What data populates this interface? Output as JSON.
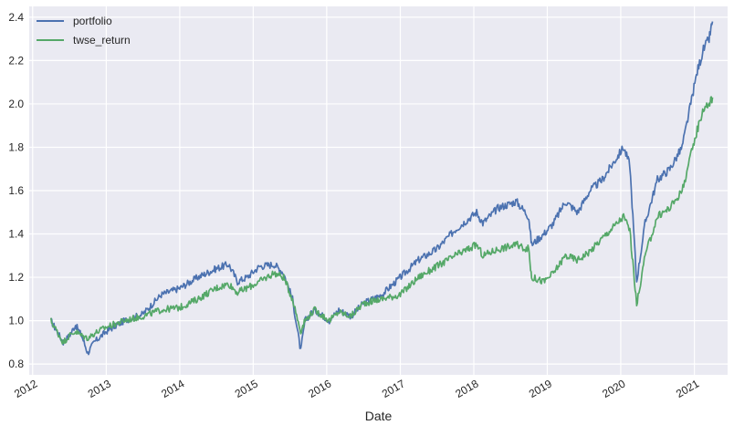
{
  "chart_data": {
    "type": "line",
    "title": "",
    "xlabel": "Date",
    "ylabel": "",
    "xlim": [
      "2011-12-15",
      "2021-06-15"
    ],
    "ylim": [
      0.75,
      2.45
    ],
    "x_ticks": [
      "2012",
      "2013",
      "2014",
      "2015",
      "2016",
      "2017",
      "2018",
      "2019",
      "2020",
      "2021"
    ],
    "y_ticks": [
      0.8,
      1.0,
      1.2,
      1.4,
      1.6,
      1.8,
      2.0,
      2.2,
      2.4
    ],
    "y_tick_labels": [
      "0.8",
      "1.0",
      "1.2",
      "1.4",
      "1.6",
      "1.8",
      "2.0",
      "2.2",
      "2.4"
    ],
    "grid": true,
    "legend_position": "top-left",
    "background_color": "#eaeaf2",
    "series": [
      {
        "name": "portfolio",
        "color": "#4c72b0",
        "points": [
          [
            "2012-04-01",
            1.0
          ],
          [
            "2012-05-01",
            0.95
          ],
          [
            "2012-06-01",
            0.9
          ],
          [
            "2012-07-01",
            0.93
          ],
          [
            "2012-08-01",
            0.98
          ],
          [
            "2012-09-01",
            0.93
          ],
          [
            "2012-10-01",
            0.85
          ],
          [
            "2012-11-01",
            0.9
          ],
          [
            "2013-01-01",
            0.95
          ],
          [
            "2013-04-01",
            1.0
          ],
          [
            "2013-07-01",
            1.03
          ],
          [
            "2013-10-01",
            1.12
          ],
          [
            "2014-01-01",
            1.15
          ],
          [
            "2014-04-01",
            1.2
          ],
          [
            "2014-07-01",
            1.24
          ],
          [
            "2014-09-01",
            1.26
          ],
          [
            "2014-10-15",
            1.18
          ],
          [
            "2014-12-01",
            1.2
          ],
          [
            "2015-02-01",
            1.25
          ],
          [
            "2015-04-15",
            1.26
          ],
          [
            "2015-06-01",
            1.22
          ],
          [
            "2015-07-15",
            1.1
          ],
          [
            "2015-08-25",
            0.86
          ],
          [
            "2015-09-15",
            1.0
          ],
          [
            "2015-11-01",
            1.05
          ],
          [
            "2016-01-15",
            1.0
          ],
          [
            "2016-03-01",
            1.05
          ],
          [
            "2016-05-01",
            1.02
          ],
          [
            "2016-07-01",
            1.08
          ],
          [
            "2016-10-01",
            1.12
          ],
          [
            "2017-01-01",
            1.2
          ],
          [
            "2017-04-01",
            1.28
          ],
          [
            "2017-07-01",
            1.33
          ],
          [
            "2017-10-01",
            1.42
          ],
          [
            "2018-01-15",
            1.5
          ],
          [
            "2018-02-15",
            1.45
          ],
          [
            "2018-05-01",
            1.52
          ],
          [
            "2018-08-01",
            1.55
          ],
          [
            "2018-10-01",
            1.48
          ],
          [
            "2018-10-15",
            1.35
          ],
          [
            "2018-12-15",
            1.4
          ],
          [
            "2019-02-01",
            1.45
          ],
          [
            "2019-04-01",
            1.55
          ],
          [
            "2019-06-01",
            1.5
          ],
          [
            "2019-08-01",
            1.6
          ],
          [
            "2019-10-01",
            1.65
          ],
          [
            "2020-01-15",
            1.8
          ],
          [
            "2020-02-15",
            1.72
          ],
          [
            "2020-03-20",
            1.18
          ],
          [
            "2020-05-01",
            1.45
          ],
          [
            "2020-07-01",
            1.65
          ],
          [
            "2020-09-01",
            1.7
          ],
          [
            "2020-11-01",
            1.8
          ],
          [
            "2021-01-15",
            2.15
          ],
          [
            "2021-02-15",
            2.25
          ],
          [
            "2021-03-15",
            2.3
          ],
          [
            "2021-04-01",
            2.38
          ]
        ]
      },
      {
        "name": "twse_return",
        "color": "#55a868",
        "points": [
          [
            "2012-04-01",
            1.0
          ],
          [
            "2012-05-01",
            0.95
          ],
          [
            "2012-06-01",
            0.9
          ],
          [
            "2012-07-01",
            0.93
          ],
          [
            "2012-08-01",
            0.95
          ],
          [
            "2012-09-01",
            0.93
          ],
          [
            "2012-10-01",
            0.92
          ],
          [
            "2012-11-01",
            0.94
          ],
          [
            "2013-01-01",
            0.97
          ],
          [
            "2013-04-01",
            1.0
          ],
          [
            "2013-07-01",
            1.02
          ],
          [
            "2013-10-01",
            1.05
          ],
          [
            "2014-01-01",
            1.06
          ],
          [
            "2014-04-01",
            1.1
          ],
          [
            "2014-07-01",
            1.15
          ],
          [
            "2014-09-01",
            1.17
          ],
          [
            "2014-10-15",
            1.13
          ],
          [
            "2014-12-01",
            1.15
          ],
          [
            "2015-02-01",
            1.18
          ],
          [
            "2015-04-15",
            1.22
          ],
          [
            "2015-06-01",
            1.2
          ],
          [
            "2015-07-15",
            1.1
          ],
          [
            "2015-08-25",
            0.95
          ],
          [
            "2015-09-15",
            1.0
          ],
          [
            "2015-11-01",
            1.05
          ],
          [
            "2016-01-15",
            1.0
          ],
          [
            "2016-03-01",
            1.04
          ],
          [
            "2016-05-01",
            1.02
          ],
          [
            "2016-07-01",
            1.08
          ],
          [
            "2016-10-01",
            1.1
          ],
          [
            "2017-01-01",
            1.12
          ],
          [
            "2017-04-01",
            1.2
          ],
          [
            "2017-07-01",
            1.25
          ],
          [
            "2017-10-01",
            1.3
          ],
          [
            "2018-01-15",
            1.35
          ],
          [
            "2018-02-15",
            1.3
          ],
          [
            "2018-05-01",
            1.33
          ],
          [
            "2018-08-01",
            1.35
          ],
          [
            "2018-10-01",
            1.33
          ],
          [
            "2018-10-15",
            1.2
          ],
          [
            "2018-12-15",
            1.18
          ],
          [
            "2019-02-01",
            1.22
          ],
          [
            "2019-04-01",
            1.3
          ],
          [
            "2019-06-01",
            1.28
          ],
          [
            "2019-08-01",
            1.32
          ],
          [
            "2019-10-01",
            1.38
          ],
          [
            "2020-01-15",
            1.48
          ],
          [
            "2020-02-15",
            1.42
          ],
          [
            "2020-03-20",
            1.07
          ],
          [
            "2020-05-01",
            1.3
          ],
          [
            "2020-07-01",
            1.48
          ],
          [
            "2020-09-01",
            1.52
          ],
          [
            "2020-11-01",
            1.6
          ],
          [
            "2021-01-15",
            1.88
          ],
          [
            "2021-02-15",
            1.98
          ],
          [
            "2021-03-15",
            2.0
          ],
          [
            "2021-04-01",
            2.03
          ]
        ]
      }
    ]
  }
}
